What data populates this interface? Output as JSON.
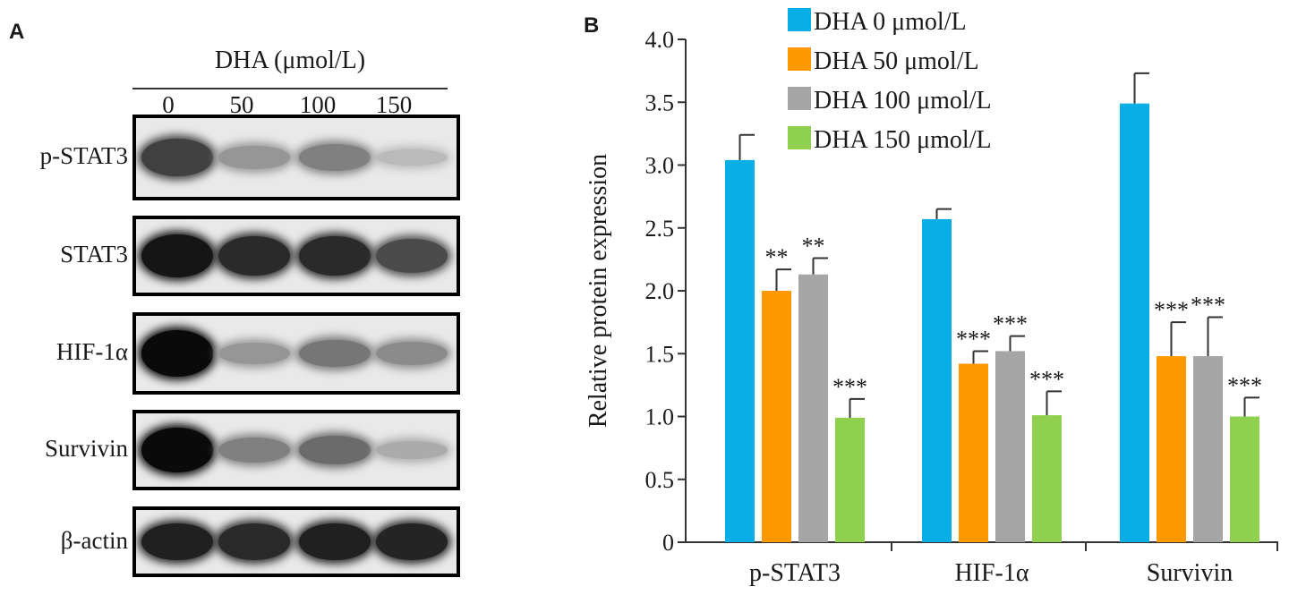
{
  "panel_a": {
    "letter": "A",
    "header": "DHA (μmol/L)",
    "lanes": [
      "0",
      "50",
      "100",
      "150"
    ],
    "blots": [
      {
        "label": "p-STAT3",
        "band_intensity": [
          0.75,
          0.35,
          0.45,
          0.18
        ]
      },
      {
        "label": "STAT3",
        "band_intensity": [
          0.95,
          0.85,
          0.85,
          0.7
        ]
      },
      {
        "label": "HIF-1α",
        "band_intensity": [
          1.0,
          0.35,
          0.5,
          0.4
        ]
      },
      {
        "label": "Survivin",
        "band_intensity": [
          1.0,
          0.45,
          0.55,
          0.25
        ]
      },
      {
        "label": "β-actin",
        "band_intensity": [
          0.9,
          0.85,
          0.9,
          0.88
        ]
      }
    ]
  },
  "panel_b": {
    "letter": "B"
  },
  "chart_data": {
    "type": "bar",
    "categories": [
      "p-STAT3",
      "HIF-1α",
      "Survivin"
    ],
    "series": [
      {
        "name": "DHA 0 μmol/L",
        "color": "#0aaee6",
        "values": [
          3.04,
          2.57,
          3.49
        ],
        "errors": [
          0.2,
          0.08,
          0.24
        ],
        "sig": [
          "",
          "",
          ""
        ]
      },
      {
        "name": "DHA 50 μmol/L",
        "color": "#ff9900",
        "values": [
          2.0,
          1.42,
          1.48
        ],
        "errors": [
          0.17,
          0.1,
          0.27
        ],
        "sig": [
          "**",
          "***",
          "***"
        ]
      },
      {
        "name": "DHA 100 μmol/L",
        "color": "#a6a6a6",
        "values": [
          2.13,
          1.52,
          1.48
        ],
        "errors": [
          0.13,
          0.12,
          0.31
        ],
        "sig": [
          "**",
          "***",
          "***"
        ]
      },
      {
        "name": "DHA 150 μmol/L",
        "color": "#8fd14f",
        "values": [
          0.99,
          1.01,
          1.0
        ],
        "errors": [
          0.15,
          0.19,
          0.15
        ],
        "sig": [
          "***",
          "***",
          "***"
        ]
      }
    ],
    "ylabel": "Relative protein expression",
    "xlabel": "",
    "ylim": [
      0,
      4.0
    ],
    "yticks": [
      "0",
      "0.5",
      "1.0",
      "1.5",
      "2.0",
      "2.5",
      "3.0",
      "3.5",
      "4.0"
    ],
    "legend_position": "top-left",
    "grid": false
  }
}
